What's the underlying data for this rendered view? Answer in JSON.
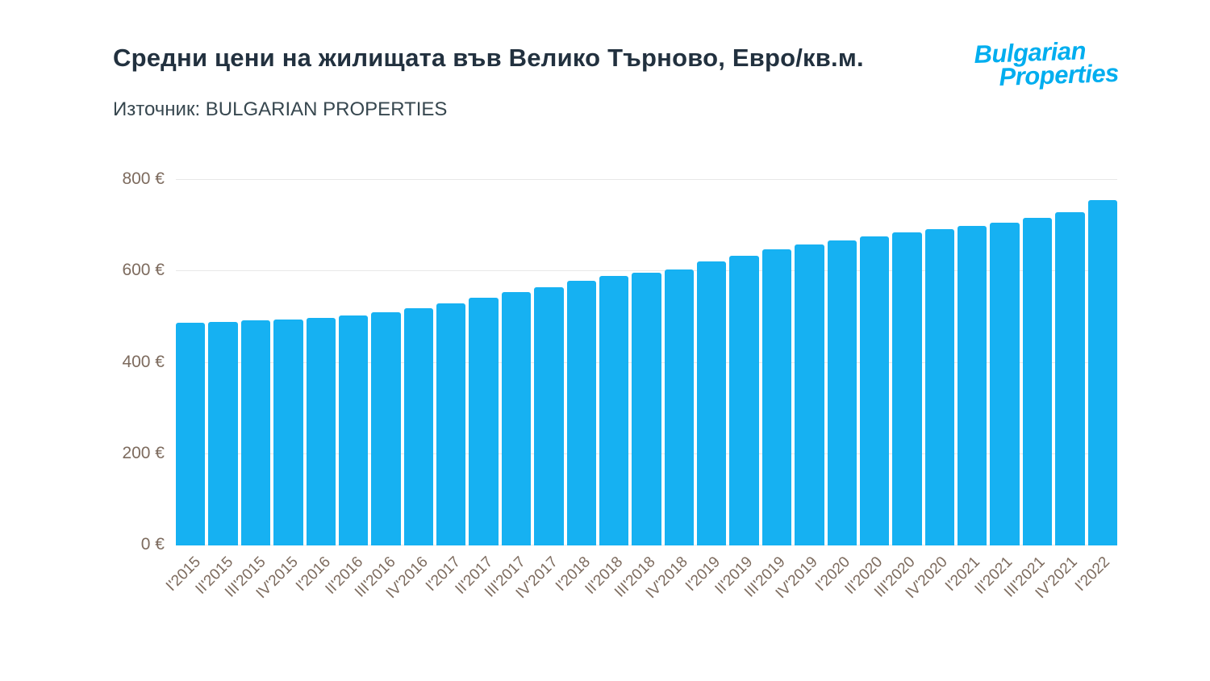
{
  "header": {
    "title": "Средни цени на жилищата във Велико Търново, Евро/кв.м.",
    "source": "Източник: BULGARIAN PROPERTIES",
    "logo_line1": "Bulgarian",
    "logo_line2": "Properties"
  },
  "colors": {
    "bar": "#16B1F2",
    "grid": "#E8E8E8",
    "tick_text": "#7D6B5E",
    "title_text": "#22313F",
    "logo_blue": "#00AEEF"
  },
  "chart_data": {
    "type": "bar",
    "title": "Средни цени на жилищата във Велико Търново, Евро/кв.м.",
    "source": "Източник: BULGARIAN PROPERTIES",
    "categories": [
      "I'2015",
      "II'2015",
      "III'2015",
      "IV'2015",
      "I'2016",
      "II'2016",
      "III'2016",
      "IV'2016",
      "I'2017",
      "II'2017",
      "III'2017",
      "IV'2017",
      "I'2018",
      "II'2018",
      "III'2018",
      "IV'2018",
      "I'2019",
      "II'2019",
      "III'2019",
      "IV'2019",
      "I'2020",
      "II'2020",
      "III'2020",
      "IV'2020",
      "I'2021",
      "II'2021",
      "III'2021",
      "IV'2021",
      "I'2022"
    ],
    "values": [
      487,
      490,
      492,
      494,
      498,
      504,
      510,
      519,
      530,
      543,
      554,
      566,
      579,
      590,
      597,
      604,
      622,
      634,
      648,
      658,
      668,
      677,
      686,
      692,
      700,
      707,
      717,
      730,
      756
    ],
    "xlabel": "",
    "ylabel": "",
    "ylim": [
      0,
      800
    ],
    "yticks": [
      0,
      200,
      400,
      600,
      800
    ],
    "ytick_labels": [
      "0 €",
      "200 €",
      "400 €",
      "600 €",
      "800 €"
    ],
    "grid": true,
    "legend": false,
    "bar_color": "#16B1F2",
    "unit": "EUR/sq.m."
  }
}
